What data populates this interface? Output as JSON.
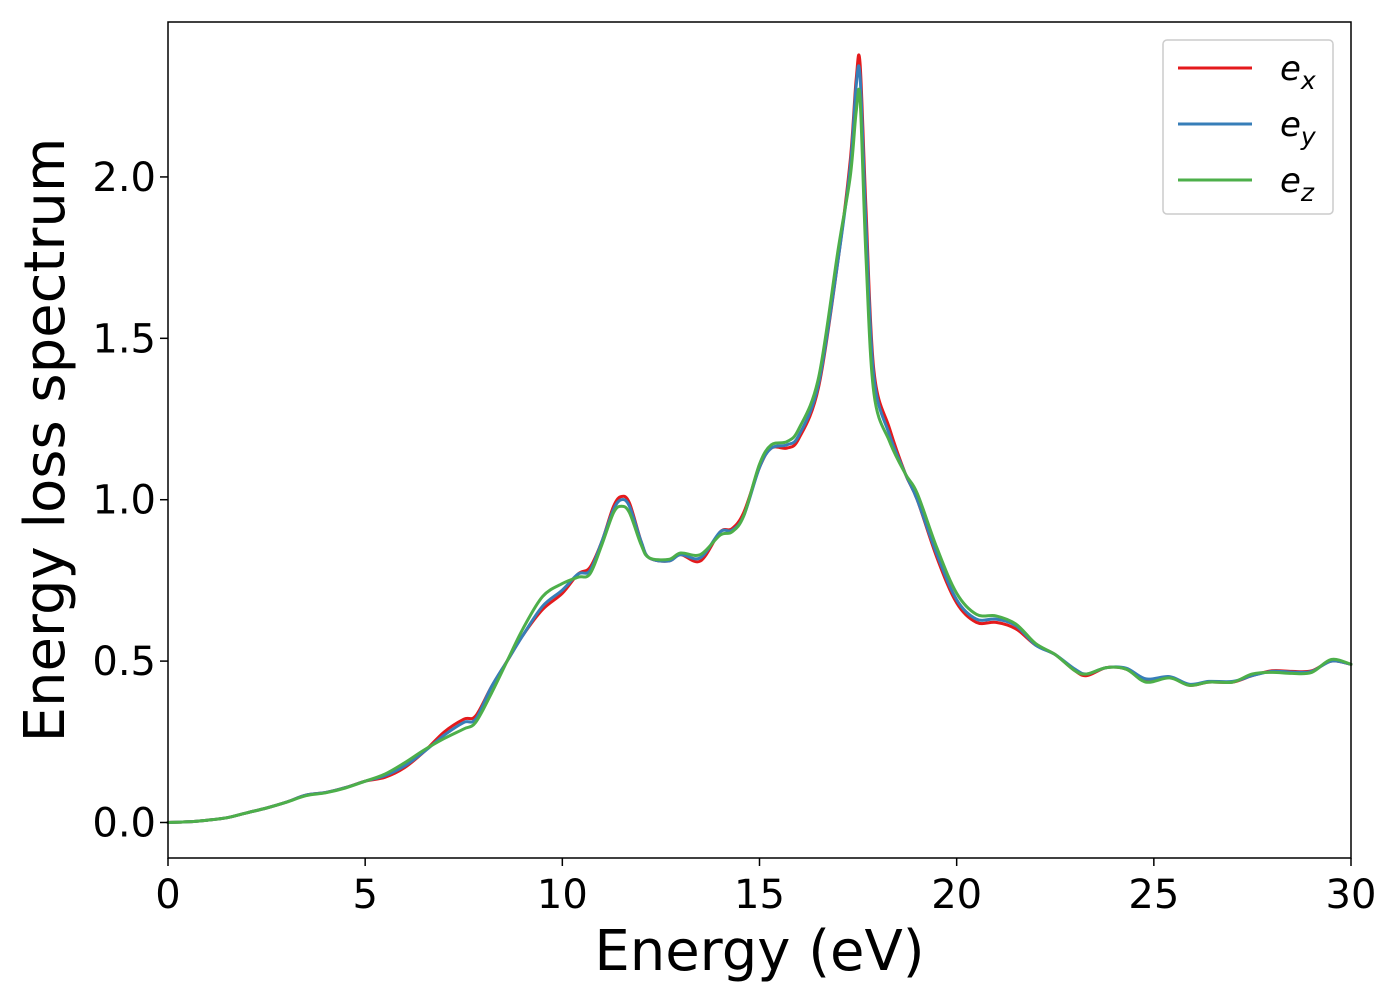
{
  "chart_data": {
    "type": "line",
    "title": "",
    "xlabel": "Energy (eV)",
    "ylabel": "Energy loss spectrum",
    "xlim": [
      0,
      30
    ],
    "ylim": [
      -0.11,
      2.48
    ],
    "xticks": [
      0,
      5,
      10,
      15,
      20,
      25,
      30
    ],
    "xtick_labels": [
      "0",
      "5",
      "10",
      "15",
      "20",
      "25",
      "30"
    ],
    "yticks": [
      0.0,
      0.5,
      1.0,
      1.5,
      2.0
    ],
    "ytick_labels": [
      "0.0",
      "0.5",
      "1.0",
      "1.5",
      "2.0"
    ],
    "grid": false,
    "legend_position": "top-right",
    "series": [
      {
        "name": "e",
        "subscript": "x",
        "color": "#e41a1c",
        "points": [
          [
            0,
            0.0
          ],
          [
            0.5,
            0.002
          ],
          [
            1,
            0.007
          ],
          [
            1.5,
            0.015
          ],
          [
            2,
            0.03
          ],
          [
            2.5,
            0.045
          ],
          [
            3,
            0.063
          ],
          [
            3.5,
            0.085
          ],
          [
            4,
            0.093
          ],
          [
            4.5,
            0.108
          ],
          [
            5,
            0.128
          ],
          [
            5.5,
            0.14
          ],
          [
            6,
            0.17
          ],
          [
            6.5,
            0.22
          ],
          [
            7,
            0.28
          ],
          [
            7.5,
            0.32
          ],
          [
            7.8,
            0.33
          ],
          [
            8.2,
            0.42
          ],
          [
            8.6,
            0.5
          ],
          [
            9,
            0.58
          ],
          [
            9.5,
            0.66
          ],
          [
            10,
            0.71
          ],
          [
            10.4,
            0.77
          ],
          [
            10.7,
            0.79
          ],
          [
            11,
            0.87
          ],
          [
            11.3,
            0.98
          ],
          [
            11.5,
            1.01
          ],
          [
            11.7,
            0.99
          ],
          [
            12,
            0.87
          ],
          [
            12.2,
            0.82
          ],
          [
            12.7,
            0.81
          ],
          [
            13,
            0.83
          ],
          [
            13.5,
            0.81
          ],
          [
            14,
            0.9
          ],
          [
            14.3,
            0.91
          ],
          [
            14.6,
            0.96
          ],
          [
            15,
            1.1
          ],
          [
            15.3,
            1.16
          ],
          [
            15.7,
            1.16
          ],
          [
            16,
            1.19
          ],
          [
            16.5,
            1.35
          ],
          [
            17,
            1.75
          ],
          [
            17.3,
            2.05
          ],
          [
            17.45,
            2.3
          ],
          [
            17.55,
            2.35
          ],
          [
            17.7,
            1.9
          ],
          [
            17.9,
            1.4
          ],
          [
            18.3,
            1.22
          ],
          [
            18.7,
            1.08
          ],
          [
            19,
            1.0
          ],
          [
            19.5,
            0.82
          ],
          [
            20,
            0.68
          ],
          [
            20.5,
            0.62
          ],
          [
            21,
            0.62
          ],
          [
            21.5,
            0.6
          ],
          [
            22,
            0.55
          ],
          [
            22.5,
            0.52
          ],
          [
            23,
            0.47
          ],
          [
            23.3,
            0.455
          ],
          [
            23.8,
            0.48
          ],
          [
            24.3,
            0.475
          ],
          [
            24.8,
            0.44
          ],
          [
            25.4,
            0.45
          ],
          [
            25.9,
            0.425
          ],
          [
            26.4,
            0.435
          ],
          [
            27,
            0.435
          ],
          [
            27.5,
            0.455
          ],
          [
            28,
            0.47
          ],
          [
            28.5,
            0.468
          ],
          [
            29,
            0.47
          ],
          [
            29.5,
            0.5
          ],
          [
            30,
            0.49
          ]
        ]
      },
      {
        "name": "e",
        "subscript": "y",
        "color": "#377eb8",
        "points": [
          [
            0,
            0.0
          ],
          [
            0.5,
            0.002
          ],
          [
            1,
            0.007
          ],
          [
            1.5,
            0.015
          ],
          [
            2,
            0.03
          ],
          [
            2.5,
            0.045
          ],
          [
            3,
            0.063
          ],
          [
            3.5,
            0.085
          ],
          [
            4,
            0.093
          ],
          [
            4.5,
            0.108
          ],
          [
            5,
            0.128
          ],
          [
            5.5,
            0.145
          ],
          [
            6,
            0.175
          ],
          [
            6.5,
            0.22
          ],
          [
            7,
            0.27
          ],
          [
            7.5,
            0.31
          ],
          [
            7.8,
            0.32
          ],
          [
            8.2,
            0.42
          ],
          [
            8.6,
            0.5
          ],
          [
            9,
            0.58
          ],
          [
            9.5,
            0.67
          ],
          [
            10,
            0.72
          ],
          [
            10.4,
            0.77
          ],
          [
            10.7,
            0.78
          ],
          [
            11,
            0.87
          ],
          [
            11.3,
            0.97
          ],
          [
            11.5,
            1.0
          ],
          [
            11.7,
            0.98
          ],
          [
            12,
            0.87
          ],
          [
            12.2,
            0.82
          ],
          [
            12.7,
            0.81
          ],
          [
            13,
            0.83
          ],
          [
            13.5,
            0.82
          ],
          [
            14,
            0.9
          ],
          [
            14.3,
            0.905
          ],
          [
            14.6,
            0.95
          ],
          [
            15,
            1.1
          ],
          [
            15.3,
            1.16
          ],
          [
            15.7,
            1.17
          ],
          [
            16,
            1.2
          ],
          [
            16.5,
            1.36
          ],
          [
            17,
            1.75
          ],
          [
            17.3,
            2.03
          ],
          [
            17.45,
            2.28
          ],
          [
            17.55,
            2.31
          ],
          [
            17.7,
            1.85
          ],
          [
            17.9,
            1.38
          ],
          [
            18.3,
            1.2
          ],
          [
            18.7,
            1.08
          ],
          [
            19,
            1.0
          ],
          [
            19.5,
            0.83
          ],
          [
            20,
            0.69
          ],
          [
            20.5,
            0.63
          ],
          [
            21,
            0.63
          ],
          [
            21.5,
            0.61
          ],
          [
            22,
            0.55
          ],
          [
            22.5,
            0.52
          ],
          [
            23,
            0.475
          ],
          [
            23.3,
            0.46
          ],
          [
            23.8,
            0.48
          ],
          [
            24.3,
            0.478
          ],
          [
            24.8,
            0.445
          ],
          [
            25.4,
            0.452
          ],
          [
            25.9,
            0.428
          ],
          [
            26.4,
            0.437
          ],
          [
            27,
            0.437
          ],
          [
            27.5,
            0.455
          ],
          [
            28,
            0.468
          ],
          [
            28.5,
            0.466
          ],
          [
            29,
            0.468
          ],
          [
            29.5,
            0.5
          ],
          [
            30,
            0.49
          ]
        ]
      },
      {
        "name": "e",
        "subscript": "z",
        "color": "#4daf4a",
        "points": [
          [
            0,
            0.0
          ],
          [
            0.5,
            0.002
          ],
          [
            1,
            0.007
          ],
          [
            1.5,
            0.015
          ],
          [
            2,
            0.03
          ],
          [
            2.5,
            0.045
          ],
          [
            3,
            0.063
          ],
          [
            3.5,
            0.083
          ],
          [
            4,
            0.092
          ],
          [
            4.5,
            0.107
          ],
          [
            5,
            0.128
          ],
          [
            5.5,
            0.15
          ],
          [
            6,
            0.185
          ],
          [
            6.5,
            0.225
          ],
          [
            7,
            0.26
          ],
          [
            7.5,
            0.29
          ],
          [
            7.8,
            0.31
          ],
          [
            8.2,
            0.4
          ],
          [
            8.6,
            0.5
          ],
          [
            9,
            0.6
          ],
          [
            9.5,
            0.7
          ],
          [
            10,
            0.74
          ],
          [
            10.4,
            0.76
          ],
          [
            10.7,
            0.77
          ],
          [
            11,
            0.86
          ],
          [
            11.3,
            0.96
          ],
          [
            11.5,
            0.98
          ],
          [
            11.7,
            0.96
          ],
          [
            12,
            0.86
          ],
          [
            12.2,
            0.82
          ],
          [
            12.7,
            0.815
          ],
          [
            13,
            0.835
          ],
          [
            13.5,
            0.83
          ],
          [
            14,
            0.89
          ],
          [
            14.3,
            0.9
          ],
          [
            14.6,
            0.95
          ],
          [
            15,
            1.11
          ],
          [
            15.3,
            1.17
          ],
          [
            15.7,
            1.18
          ],
          [
            16,
            1.22
          ],
          [
            16.5,
            1.38
          ],
          [
            17,
            1.78
          ],
          [
            17.3,
            2.0
          ],
          [
            17.45,
            2.2
          ],
          [
            17.55,
            2.24
          ],
          [
            17.7,
            1.75
          ],
          [
            17.9,
            1.33
          ],
          [
            18.3,
            1.18
          ],
          [
            18.7,
            1.08
          ],
          [
            19,
            1.02
          ],
          [
            19.5,
            0.85
          ],
          [
            20,
            0.71
          ],
          [
            20.5,
            0.645
          ],
          [
            21,
            0.64
          ],
          [
            21.5,
            0.615
          ],
          [
            22,
            0.555
          ],
          [
            22.5,
            0.52
          ],
          [
            23,
            0.47
          ],
          [
            23.3,
            0.46
          ],
          [
            23.8,
            0.48
          ],
          [
            24.3,
            0.475
          ],
          [
            24.8,
            0.435
          ],
          [
            25.4,
            0.448
          ],
          [
            25.9,
            0.425
          ],
          [
            26.4,
            0.435
          ],
          [
            27,
            0.435
          ],
          [
            27.5,
            0.46
          ],
          [
            28,
            0.465
          ],
          [
            28.5,
            0.462
          ],
          [
            29,
            0.465
          ],
          [
            29.5,
            0.505
          ],
          [
            30,
            0.49
          ]
        ]
      }
    ]
  }
}
